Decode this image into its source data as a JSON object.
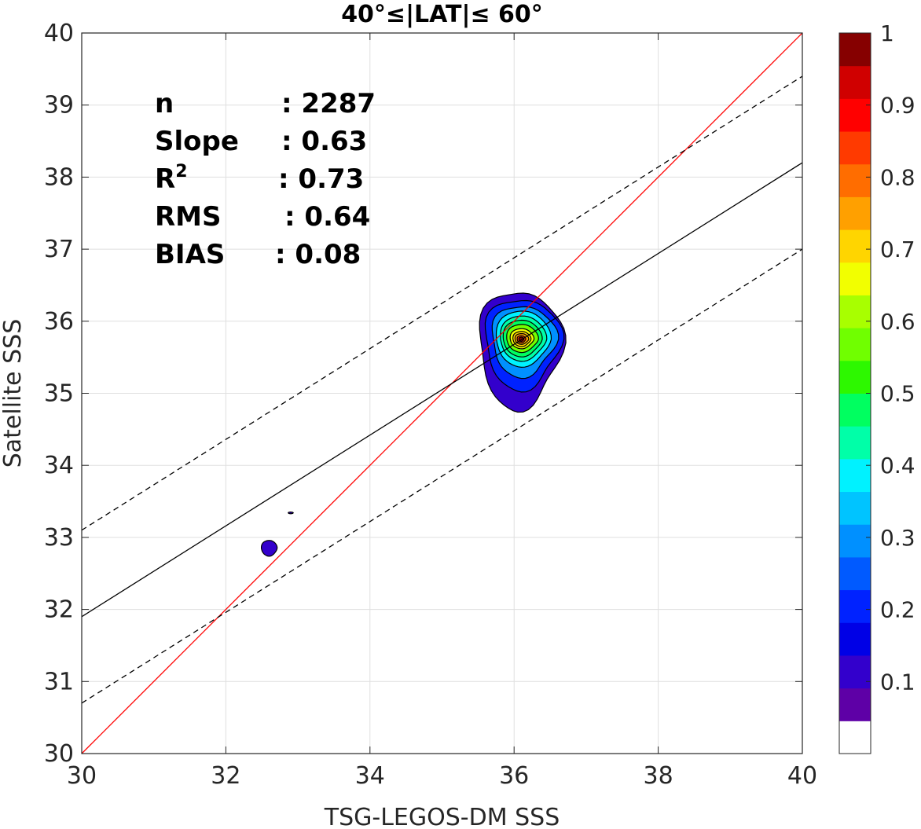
{
  "chart_data": {
    "type": "contour",
    "title": "40°≤|LAT|≤ 60°",
    "xlabel": "TSG-LEGOS-DM SSS",
    "ylabel": "Satellite SSS",
    "xlim": [
      30,
      40
    ],
    "ylim": [
      30,
      40
    ],
    "xticks": [
      "30",
      "32",
      "34",
      "36",
      "38",
      "40"
    ],
    "yticks": [
      "30",
      "31",
      "32",
      "33",
      "34",
      "35",
      "36",
      "37",
      "38",
      "39",
      "40"
    ],
    "grid": true,
    "stats": [
      {
        "label": "n",
        "sup": "",
        "value": ": 2287"
      },
      {
        "label": "Slope",
        "sup": "",
        "value": ": 0.63"
      },
      {
        "label": "R",
        "sup": "2",
        "value": ": 0.73"
      },
      {
        "label": "RMS",
        "sup": "",
        "value": ": 0.64"
      },
      {
        "label": "BIAS",
        "sup": "",
        "value": ": 0.08"
      }
    ],
    "lines": [
      {
        "style": "red-solid",
        "color": "#ff0000",
        "x": [
          30,
          40
        ],
        "y": [
          30,
          40
        ]
      },
      {
        "style": "black-solid",
        "color": "#000000",
        "x": [
          30,
          40
        ],
        "y": [
          31.9,
          38.2
        ]
      },
      {
        "style": "black-dashed-upper",
        "color": "#000000",
        "x": [
          30,
          40
        ],
        "y": [
          33.1,
          39.4
        ]
      },
      {
        "style": "black-dashed-lower",
        "color": "#000000",
        "x": [
          30,
          40
        ],
        "y": [
          30.7,
          37.0
        ]
      }
    ],
    "density_peak": {
      "x": 36.1,
      "y": 35.75
    },
    "secondary_blobs": [
      {
        "x": 32.6,
        "y": 32.85,
        "level": 0.1
      },
      {
        "x": 32.9,
        "y": 33.34,
        "level": 0.1
      }
    ],
    "colorbar": {
      "ticks": [
        "0.1",
        "0.2",
        "0.3",
        "0.4",
        "0.5",
        "0.6",
        "0.7",
        "0.8",
        "0.9",
        "1"
      ],
      "range": [
        0,
        1
      ],
      "colors": [
        "#ffffff",
        "#5e00a6",
        "#3300cc",
        "#0000e6",
        "#0022ff",
        "#005aff",
        "#0090ff",
        "#00c4ff",
        "#00f2ff",
        "#00ffa8",
        "#00ff60",
        "#2df800",
        "#70ff00",
        "#a8ff00",
        "#f2ff00",
        "#ffd500",
        "#ffa000",
        "#ff6d00",
        "#ff3a00",
        "#ff0000",
        "#d00000",
        "#860000"
      ]
    }
  }
}
